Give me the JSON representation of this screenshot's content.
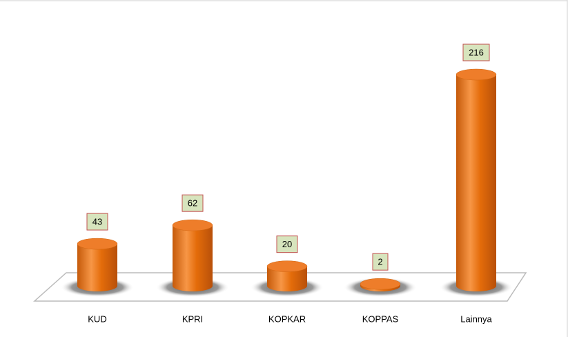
{
  "chart_data": {
    "type": "cylinder",
    "categories": [
      "KUD",
      "KPRI",
      "KOPKAR",
      "KOPPAS",
      "Lainnya"
    ],
    "values": [
      43,
      62,
      20,
      2,
      216
    ],
    "color": "#e46c0a"
  }
}
